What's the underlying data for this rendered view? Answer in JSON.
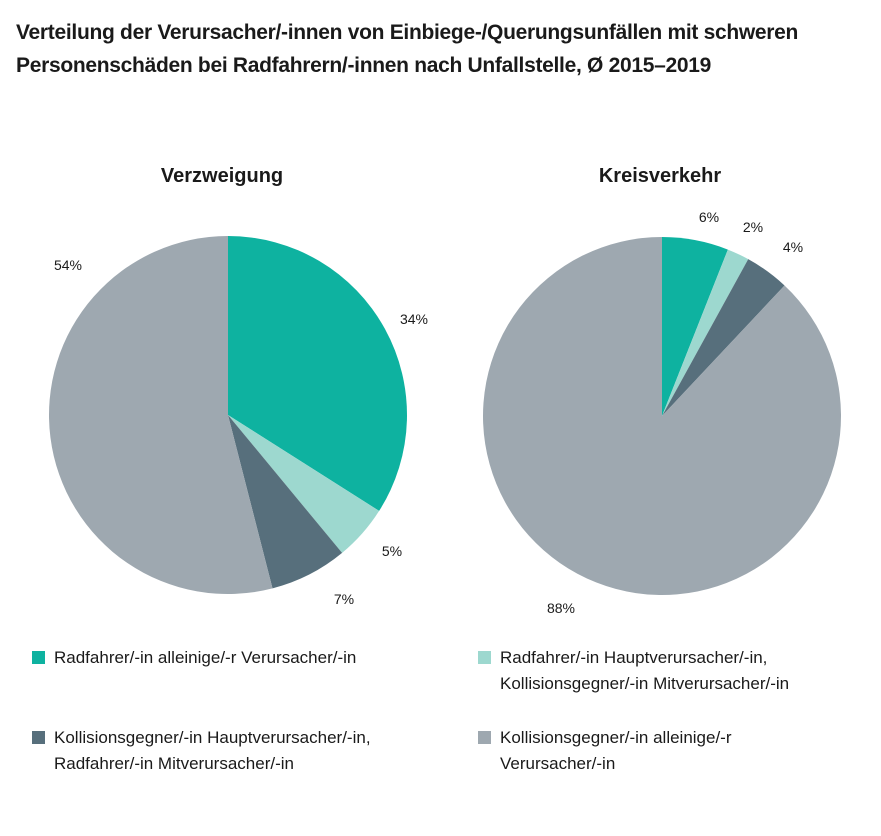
{
  "title_lines": [
    "Verteilung der Verursacher/-innen von Einbiege-/Querungsunfällen mit schweren",
    "Personenschäden bei Radfahrern/-innen nach Unfallstelle, Ø 2015–2019"
  ],
  "chart_data": [
    {
      "type": "pie",
      "title": "Verzweigung",
      "slices": [
        {
          "label": "Radfahrer/-in alleinige/-r Verursacher/-in",
          "value": 34,
          "display": "34%"
        },
        {
          "label": "Radfahrer/-in Hauptverursacher/-in, Kollisionsgegner/-in Mitverursacher/-in",
          "value": 5,
          "display": "5%"
        },
        {
          "label": "Kollisionsgegner/-in Hauptverursacher/-in, Radfahrer/-in Mitverursacher/-in",
          "value": 7,
          "display": "7%"
        },
        {
          "label": "Kollisionsgegner/-in alleinige/-r Verursacher/-in",
          "value": 54,
          "display": "54%"
        }
      ]
    },
    {
      "type": "pie",
      "title": "Kreisverkehr",
      "slices": [
        {
          "label": "Radfahrer/-in alleinige/-r Verursacher/-in",
          "value": 6,
          "display": "6%"
        },
        {
          "label": "Radfahrer/-in Hauptverursacher/-in, Kollisionsgegner/-in Mitverursacher/-in",
          "value": 2,
          "display": "2%"
        },
        {
          "label": "Kollisionsgegner/-in Hauptverursacher/-in, Radfahrer/-in Mitverursacher/-in",
          "value": 4,
          "display": "4%"
        },
        {
          "label": "Kollisionsgegner/-in alleinige/-r Verursacher/-in",
          "value": 88,
          "display": "88%"
        }
      ]
    }
  ],
  "colors": [
    "#0eb2a0",
    "#9dd8cf",
    "#576f7c",
    "#9ea8b0"
  ],
  "legend": [
    {
      "lines": [
        "Radfahrer/-in alleinige/-r Verursacher/-in"
      ],
      "color": "#0eb2a0"
    },
    {
      "lines": [
        "Radfahrer/-in Hauptverursacher/-in,",
        "Kollisionsgegner/-in Mitverursacher/-in"
      ],
      "color": "#9dd8cf"
    },
    {
      "lines": [
        "Kollisionsgegner/-in Hauptverursacher/-in,",
        "Radfahrer/-in Mitverursacher/-in"
      ],
      "color": "#576f7c"
    },
    {
      "lines": [
        "Kollisionsgegner/-in alleinige/-r",
        "Verursacher/-in"
      ],
      "color": "#9ea8b0"
    }
  ]
}
